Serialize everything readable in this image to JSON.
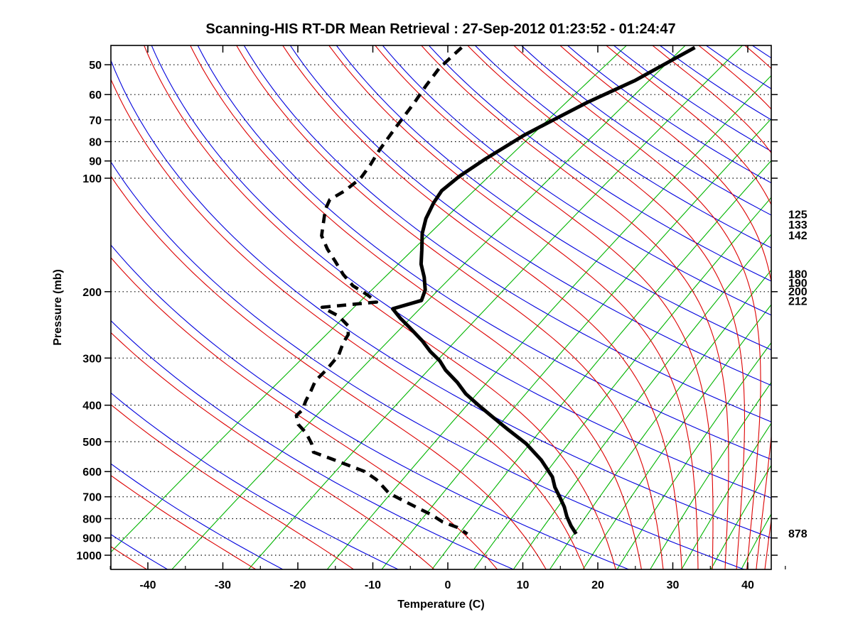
{
  "title": "Scanning-HIS RT-DR Mean Retrieval : 27-Sep-2012 01:23:52 - 01:24:47",
  "axes": {
    "x_label": "Temperature (C)",
    "y_label": "Pressure (mb)",
    "x_ticks": [
      -40,
      -30,
      -20,
      -10,
      0,
      10,
      20,
      30,
      40
    ],
    "x_minor_step": 5,
    "y_ticks": [
      50,
      60,
      70,
      80,
      90,
      100,
      200,
      300,
      400,
      500,
      600,
      700,
      800,
      900,
      1000
    ]
  },
  "right_labels": [
    "125",
    "133",
    "142",
    "180",
    "190",
    "200",
    "212",
    "878"
  ],
  "right_label_pressures": [
    125,
    133,
    142,
    180,
    190,
    200,
    212,
    878
  ],
  "colors": {
    "temperature_line": "#000000",
    "dewpoint_line": "#000000",
    "dry_adiabat": "#0000dd",
    "moist_adiabat": "#dd0000",
    "mixing_ratio": "#00b400",
    "grid_dotted": "#000000",
    "axis_box": "#000000"
  },
  "chart_data": {
    "type": "line",
    "subtype": "skew-t log-p sounding",
    "title": "Scanning-HIS RT-DR Mean Retrieval : 27-Sep-2012 01:23:52 - 01:24:47",
    "xlabel": "Temperature (C)",
    "ylabel": "Pressure (mb)",
    "x_range_C": [
      -45,
      45
    ],
    "pressure_range_mb": [
      45,
      1091
    ],
    "grid": "dotted horizontal isobars at labeled pressures",
    "legend_position": "none",
    "annotations_right_mb": [
      125,
      133,
      142,
      180,
      190,
      200,
      212,
      878
    ],
    "series": [
      {
        "name": "temperature",
        "style": "solid",
        "points_p_T": [
          [
            45,
            -62.7
          ],
          [
            55,
            -64.6
          ],
          [
            63,
            -67.0
          ],
          [
            70,
            -68.3
          ],
          [
            77,
            -69.4
          ],
          [
            89,
            -70.2
          ],
          [
            99,
            -70.5
          ],
          [
            108,
            -70.2
          ],
          [
            116,
            -69.1
          ],
          [
            128,
            -67.2
          ],
          [
            140,
            -65.0
          ],
          [
            155,
            -62.0
          ],
          [
            169,
            -59.5
          ],
          [
            183,
            -56.7
          ],
          [
            198,
            -54.2
          ],
          [
            211,
            -52.8
          ],
          [
            222,
            -55.1
          ],
          [
            235,
            -52.4
          ],
          [
            250,
            -49.2
          ],
          [
            270,
            -45.3
          ],
          [
            288,
            -42.3
          ],
          [
            305,
            -39.3
          ],
          [
            323,
            -36.8
          ],
          [
            348,
            -33.0
          ],
          [
            373,
            -29.8
          ],
          [
            400,
            -26.0
          ],
          [
            425,
            -22.6
          ],
          [
            465,
            -17.5
          ],
          [
            506,
            -12.6
          ],
          [
            559,
            -7.6
          ],
          [
            620,
            -3.0
          ],
          [
            660,
            -0.8
          ],
          [
            700,
            1.6
          ],
          [
            745,
            4.1
          ],
          [
            790,
            6.2
          ],
          [
            835,
            8.4
          ],
          [
            878,
            10.6
          ]
        ]
      },
      {
        "name": "dewpoint",
        "style": "dashed",
        "points_p_T": [
          [
            45,
            -93.8
          ],
          [
            51,
            -93.0
          ],
          [
            57,
            -91.5
          ],
          [
            63,
            -90.0
          ],
          [
            73,
            -88.0
          ],
          [
            84,
            -86.0
          ],
          [
            92,
            -84.5
          ],
          [
            100,
            -83.3
          ],
          [
            108,
            -83.1
          ],
          [
            114,
            -83.5
          ],
          [
            121,
            -82.3
          ],
          [
            127,
            -81.0
          ],
          [
            142,
            -78.0
          ],
          [
            154,
            -74.8
          ],
          [
            166,
            -71.5
          ],
          [
            180,
            -68.0
          ],
          [
            193,
            -64.6
          ],
          [
            204,
            -61.0
          ],
          [
            213,
            -58.5
          ],
          [
            220,
            -64.8
          ],
          [
            232,
            -61.0
          ],
          [
            246,
            -58.0
          ],
          [
            260,
            -56.3
          ],
          [
            273,
            -55.5
          ],
          [
            295,
            -53.8
          ],
          [
            321,
            -52.8
          ],
          [
            345,
            -52.2
          ],
          [
            366,
            -51.0
          ],
          [
            390,
            -49.8
          ],
          [
            412,
            -48.6
          ],
          [
            426,
            -48.4
          ],
          [
            450,
            -46.5
          ],
          [
            474,
            -43.9
          ],
          [
            506,
            -41.2
          ],
          [
            533,
            -39.4
          ],
          [
            555,
            -35.8
          ],
          [
            577,
            -32.4
          ],
          [
            600,
            -29.0
          ],
          [
            630,
            -26.0
          ],
          [
            658,
            -23.8
          ],
          [
            685,
            -21.8
          ],
          [
            716,
            -18.6
          ],
          [
            748,
            -15.4
          ],
          [
            781,
            -12.2
          ],
          [
            816,
            -9.4
          ],
          [
            844,
            -6.4
          ],
          [
            878,
            -3.9
          ]
        ]
      }
    ],
    "background_lines": {
      "dry_adiabats_theta_K": [
        230,
        245,
        260,
        275,
        290,
        305,
        320,
        335,
        350,
        365,
        380,
        395,
        410,
        425,
        440,
        455,
        470,
        485,
        500,
        515,
        530
      ],
      "moist_adiabats": "one pseudoadiabat paired with each dry adiabat, converging aloft",
      "mixing_ratio_g_kg": [
        0.05,
        0.15,
        0.4,
        1,
        1.8,
        3,
        4.5,
        6.5,
        9,
        12,
        16,
        21,
        27,
        34,
        43
      ]
    }
  }
}
